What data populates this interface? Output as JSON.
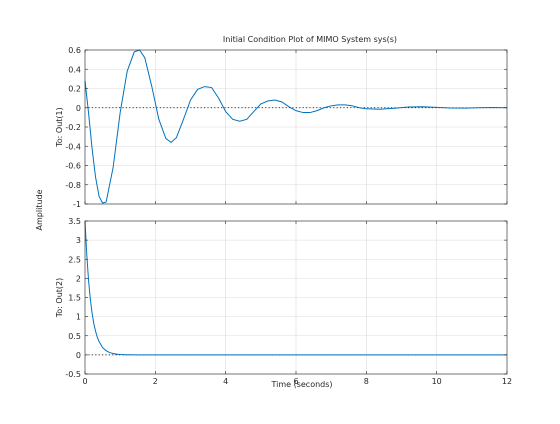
{
  "chart_data": [
    {
      "type": "line",
      "title": "Initial Condition Plot of MIMO System sys(s)",
      "xlabel": "Time (seconds)",
      "ylabel": "To: Out(1)",
      "shared_ylabel": "Amplitude",
      "xlim": [
        0,
        12
      ],
      "ylim": [
        -1,
        0.6
      ],
      "xticks": [
        "0",
        "2",
        "4",
        "6",
        "8",
        "10",
        "12"
      ],
      "yticks": [
        "-1",
        "-0.8",
        "-0.6",
        "-0.4",
        "-0.2",
        "0",
        "0.2",
        "0.4",
        "0.6"
      ],
      "grid": true,
      "reference_line": 0,
      "series": [
        {
          "color": "#0072bd",
          "x": [
            0,
            0.1,
            0.2,
            0.3,
            0.4,
            0.5,
            0.6,
            0.8,
            1.0,
            1.2,
            1.4,
            1.55,
            1.7,
            1.9,
            2.1,
            2.3,
            2.45,
            2.6,
            2.8,
            3.0,
            3.2,
            3.4,
            3.6,
            3.8,
            4.0,
            4.2,
            4.4,
            4.6,
            4.8,
            5.0,
            5.2,
            5.4,
            5.6,
            5.8,
            6.0,
            6.2,
            6.4,
            6.6,
            6.8,
            7.0,
            7.2,
            7.4,
            7.6,
            7.8,
            8.0,
            8.4,
            8.8,
            9.2,
            9.6,
            10.0,
            10.4,
            10.8,
            11.2,
            11.6,
            12.0
          ],
          "y": [
            0.28,
            -0.05,
            -0.42,
            -0.72,
            -0.92,
            -0.99,
            -0.98,
            -0.62,
            -0.05,
            0.38,
            0.58,
            0.6,
            0.52,
            0.22,
            -0.12,
            -0.32,
            -0.36,
            -0.31,
            -0.12,
            0.08,
            0.19,
            0.22,
            0.21,
            0.1,
            -0.04,
            -0.12,
            -0.14,
            -0.12,
            -0.04,
            0.04,
            0.07,
            0.08,
            0.06,
            0.01,
            -0.03,
            -0.05,
            -0.05,
            -0.03,
            0.0,
            0.02,
            0.03,
            0.03,
            0.02,
            0.0,
            -0.01,
            -0.015,
            -0.005,
            0.008,
            0.01,
            0.004,
            -0.003,
            -0.004,
            0.0,
            0.002,
            0.0
          ]
        }
      ]
    },
    {
      "type": "line",
      "xlabel": "Time (seconds)",
      "ylabel": "To: Out(2)",
      "xlim": [
        0,
        12
      ],
      "ylim": [
        -0.5,
        3.5
      ],
      "xticks": [
        "0",
        "2",
        "4",
        "6",
        "8",
        "10",
        "12"
      ],
      "yticks": [
        "-0.5",
        "0",
        "0.5",
        "1",
        "1.5",
        "2",
        "2.5",
        "3",
        "3.5"
      ],
      "grid": true,
      "reference_line": 0,
      "series": [
        {
          "color": "#0072bd",
          "x": [
            0,
            0.05,
            0.1,
            0.15,
            0.2,
            0.25,
            0.3,
            0.35,
            0.4,
            0.5,
            0.6,
            0.7,
            0.8,
            0.9,
            1.0,
            1.2,
            1.5,
            2.0,
            3.0,
            4.0,
            6.0,
            8.0,
            10.0,
            12.0
          ],
          "y": [
            3.5,
            2.62,
            1.96,
            1.47,
            1.1,
            0.82,
            0.62,
            0.46,
            0.35,
            0.19,
            0.11,
            0.06,
            0.035,
            0.02,
            0.01,
            0.004,
            0.001,
            0.0,
            0.0,
            0.0,
            0.0,
            0.0,
            0.0,
            0.0
          ]
        }
      ]
    }
  ]
}
